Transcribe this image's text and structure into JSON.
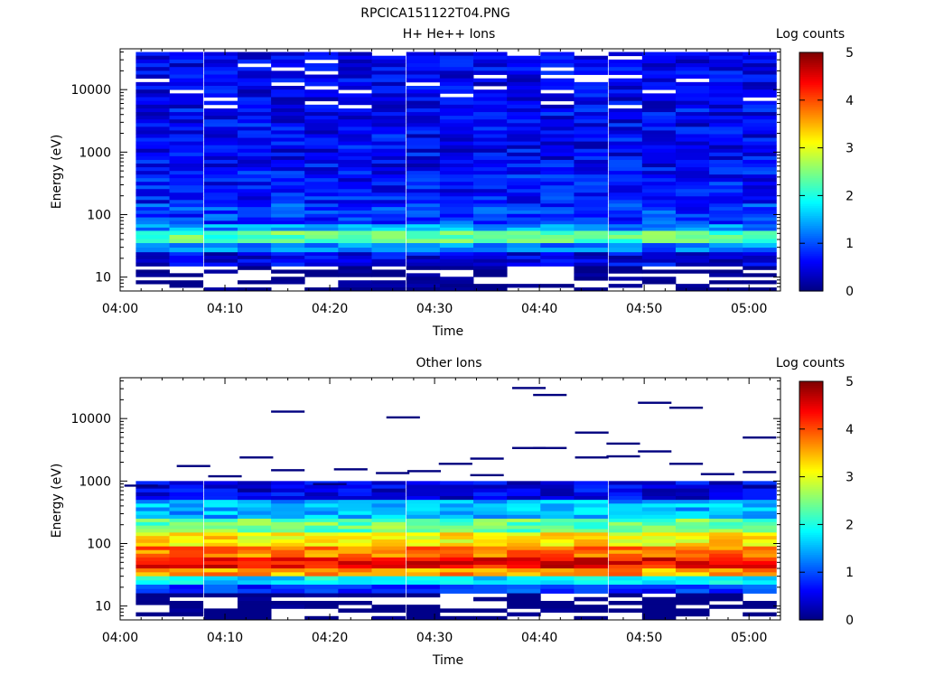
{
  "figure_title": "RPCICA151122T04.PNG",
  "colors": {
    "jet": [
      "#00007f",
      "#0000ff",
      "#007fff",
      "#00ffff",
      "#7fff7f",
      "#ffff00",
      "#ff7f00",
      "#ff0000",
      "#7f0000"
    ]
  },
  "chart_data": [
    {
      "type": "heatmap",
      "title": "H+ He++ Ions",
      "xlabel": "Time",
      "ylabel": "Energy (eV)",
      "x_scale": "time",
      "x_range": [
        "04:00",
        "05:03"
      ],
      "x_ticks": [
        "04:00",
        "04:10",
        "04:20",
        "04:30",
        "04:40",
        "04:50",
        "05:00"
      ],
      "y_scale": "log",
      "ylim": [
        6,
        45000
      ],
      "y_ticks": [
        "10",
        "100",
        "1000",
        "10000"
      ],
      "colorbar": {
        "label": "Log counts",
        "range": [
          0,
          5
        ],
        "ticks": [
          "0",
          "1",
          "2",
          "3",
          "4",
          "5"
        ]
      },
      "time_bins_start": [
        "04:01.5",
        "04:04.7",
        "04:08.0",
        "04:11.2",
        "04:14.4",
        "04:17.6",
        "04:20.8",
        "04:24.0",
        "04:27.3",
        "04:30.5",
        "04:33.7",
        "04:36.9",
        "04:40.1",
        "04:43.3",
        "04:46.6",
        "04:49.8",
        "04:53.0",
        "04:56.2",
        "04:59.4"
      ],
      "time_bin_width_min": 3.2,
      "energy_bands": [
        {
          "from": 40000,
          "to": 5000,
          "log_counts": 0.6,
          "note": "mixed dark/medium blue with white gaps"
        },
        {
          "from": 5000,
          "to": 500,
          "log_counts": 0.6
        },
        {
          "from": 500,
          "to": 150,
          "log_counts": 0.7
        },
        {
          "from": 150,
          "to": 70,
          "log_counts": 0.9
        },
        {
          "from": 70,
          "to": 55,
          "log_counts": 1.4
        },
        {
          "from": 55,
          "to": 35,
          "log_counts": 2.3,
          "note": "peak band, green"
        },
        {
          "from": 35,
          "to": 25,
          "log_counts": 1.2
        },
        {
          "from": 25,
          "to": 15,
          "log_counts": 0.5
        },
        {
          "from": 15,
          "to": 6,
          "log_counts": 0.2,
          "note": "patchy, partially empty"
        }
      ]
    },
    {
      "type": "heatmap",
      "title": "Other Ions",
      "xlabel": "Time",
      "ylabel": "Energy (eV)",
      "x_scale": "time",
      "x_range": [
        "04:00",
        "05:03"
      ],
      "x_ticks": [
        "04:00",
        "04:10",
        "04:20",
        "04:30",
        "04:40",
        "04:50",
        "05:00"
      ],
      "y_scale": "log",
      "ylim": [
        6,
        45000
      ],
      "y_ticks": [
        "10",
        "100",
        "1000",
        "10000"
      ],
      "colorbar": {
        "label": "Log counts",
        "range": [
          0,
          5
        ],
        "ticks": [
          "0",
          "1",
          "2",
          "3",
          "4",
          "5"
        ]
      },
      "time_bins_start": [
        "04:01.5",
        "04:04.7",
        "04:08.0",
        "04:11.2",
        "04:14.4",
        "04:17.6",
        "04:20.8",
        "04:24.0",
        "04:27.3",
        "04:30.5",
        "04:33.7",
        "04:36.9",
        "04:40.1",
        "04:43.3",
        "04:46.6",
        "04:49.8",
        "04:53.0",
        "04:56.2",
        "04:59.4"
      ],
      "time_bin_width_min": 3.2,
      "energy_bands": [
        {
          "from": 1000,
          "to": 500,
          "log_counts": 0.5
        },
        {
          "from": 500,
          "to": 250,
          "log_counts": 1.5
        },
        {
          "from": 250,
          "to": 150,
          "log_counts": 2.4
        },
        {
          "from": 150,
          "to": 90,
          "log_counts": 3.2
        },
        {
          "from": 90,
          "to": 60,
          "log_counts": 3.8
        },
        {
          "from": 60,
          "to": 40,
          "log_counts": 4.4,
          "note": "peak band, red"
        },
        {
          "from": 40,
          "to": 30,
          "log_counts": 3.6
        },
        {
          "from": 30,
          "to": 22,
          "log_counts": 1.8
        },
        {
          "from": 22,
          "to": 16,
          "log_counts": 0.9
        },
        {
          "from": 16,
          "to": 6,
          "log_counts": 0.1,
          "note": "patchy, partially empty"
        }
      ],
      "sparse_high_energy_streaks": [
        {
          "time": "04:02",
          "energy": 850
        },
        {
          "time": "04:07",
          "energy": 1750
        },
        {
          "time": "04:10",
          "energy": 1200
        },
        {
          "time": "04:13",
          "energy": 2400
        },
        {
          "time": "04:16",
          "energy": 13000
        },
        {
          "time": "04:16",
          "energy": 1500
        },
        {
          "time": "04:20",
          "energy": 900
        },
        {
          "time": "04:22",
          "energy": 1550
        },
        {
          "time": "04:27",
          "energy": 10500
        },
        {
          "time": "04:26",
          "energy": 1350
        },
        {
          "time": "04:29",
          "energy": 1450
        },
        {
          "time": "04:32",
          "energy": 1900
        },
        {
          "time": "04:35",
          "energy": 2300
        },
        {
          "time": "04:35",
          "energy": 1250
        },
        {
          "time": "04:39",
          "energy": 31000
        },
        {
          "time": "04:39",
          "energy": 3400
        },
        {
          "time": "04:41",
          "energy": 24000
        },
        {
          "time": "04:41",
          "energy": 3400
        },
        {
          "time": "04:45",
          "energy": 6000
        },
        {
          "time": "04:45",
          "energy": 2400
        },
        {
          "time": "04:48",
          "energy": 4000
        },
        {
          "time": "04:48",
          "energy": 2500
        },
        {
          "time": "04:51",
          "energy": 18000
        },
        {
          "time": "04:51",
          "energy": 3000
        },
        {
          "time": "04:54",
          "energy": 15000
        },
        {
          "time": "04:54",
          "energy": 1900
        },
        {
          "time": "04:57",
          "energy": 1300
        },
        {
          "time": "05:01",
          "energy": 5000
        },
        {
          "time": "05:01",
          "energy": 1400
        }
      ]
    }
  ]
}
